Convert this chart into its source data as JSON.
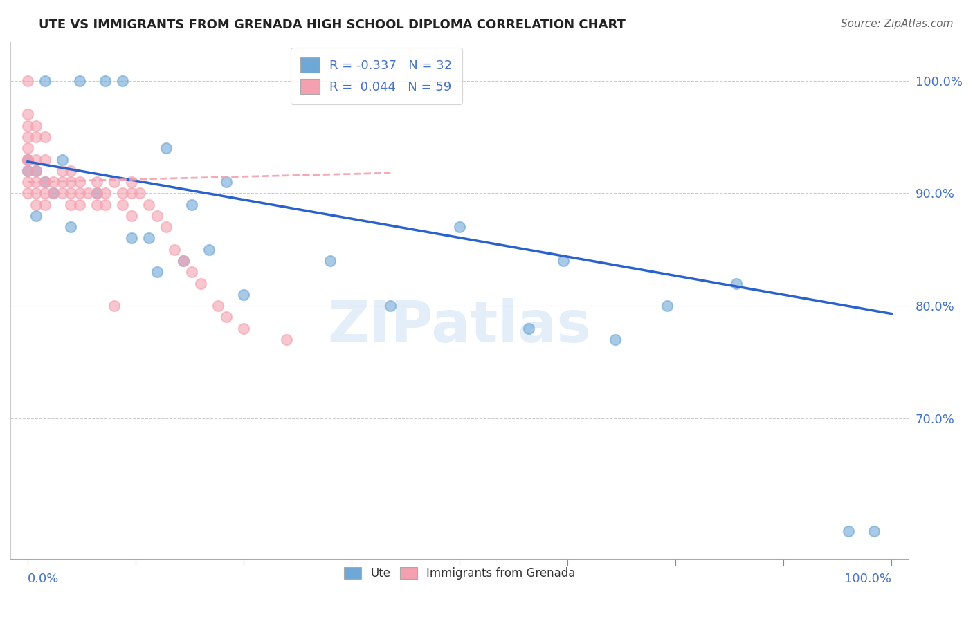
{
  "title": "UTE VS IMMIGRANTS FROM GRENADA HIGH SCHOOL DIPLOMA CORRELATION CHART",
  "source": "Source: ZipAtlas.com",
  "ylabel": "High School Diploma",
  "watermark": "ZIPatlas",
  "legend_blue_r": "-0.337",
  "legend_blue_n": "32",
  "legend_pink_r": "0.044",
  "legend_pink_n": "59",
  "blue_color": "#6fa8d6",
  "pink_color": "#f4a0b0",
  "blue_line_color": "#2962cc",
  "blue_scatter_x": [
    0.02,
    0.06,
    0.09,
    0.11,
    0.0,
    0.04,
    0.16,
    0.23,
    0.01,
    0.05,
    0.14,
    0.19,
    0.35,
    0.5,
    0.62,
    0.68,
    0.74,
    0.82,
    0.98,
    0.0,
    0.01,
    0.02,
    0.03,
    0.08,
    0.12,
    0.15,
    0.18,
    0.21,
    0.25,
    0.42,
    0.58,
    0.95
  ],
  "blue_scatter_y": [
    1.0,
    1.0,
    1.0,
    1.0,
    0.92,
    0.93,
    0.94,
    0.91,
    0.88,
    0.87,
    0.86,
    0.89,
    0.84,
    0.87,
    0.84,
    0.77,
    0.8,
    0.82,
    0.6,
    0.93,
    0.92,
    0.91,
    0.9,
    0.9,
    0.86,
    0.83,
    0.84,
    0.85,
    0.81,
    0.8,
    0.78,
    0.6
  ],
  "pink_scatter_x": [
    0.0,
    0.0,
    0.0,
    0.0,
    0.0,
    0.0,
    0.0,
    0.0,
    0.0,
    0.0,
    0.01,
    0.01,
    0.01,
    0.01,
    0.01,
    0.01,
    0.01,
    0.02,
    0.02,
    0.02,
    0.02,
    0.02,
    0.03,
    0.03,
    0.04,
    0.04,
    0.04,
    0.05,
    0.05,
    0.05,
    0.05,
    0.06,
    0.06,
    0.06,
    0.07,
    0.08,
    0.08,
    0.08,
    0.09,
    0.09,
    0.1,
    0.1,
    0.11,
    0.11,
    0.12,
    0.12,
    0.12,
    0.13,
    0.14,
    0.15,
    0.16,
    0.17,
    0.18,
    0.19,
    0.2,
    0.22,
    0.23,
    0.25,
    0.3
  ],
  "pink_scatter_y": [
    1.0,
    0.97,
    0.96,
    0.95,
    0.94,
    0.93,
    0.93,
    0.92,
    0.91,
    0.9,
    0.96,
    0.95,
    0.93,
    0.92,
    0.91,
    0.9,
    0.89,
    0.95,
    0.93,
    0.91,
    0.9,
    0.89,
    0.91,
    0.9,
    0.92,
    0.91,
    0.9,
    0.92,
    0.91,
    0.9,
    0.89,
    0.91,
    0.9,
    0.89,
    0.9,
    0.91,
    0.9,
    0.89,
    0.9,
    0.89,
    0.91,
    0.8,
    0.9,
    0.89,
    0.91,
    0.9,
    0.88,
    0.9,
    0.89,
    0.88,
    0.87,
    0.85,
    0.84,
    0.83,
    0.82,
    0.8,
    0.79,
    0.78,
    0.77
  ],
  "ylim_min": 0.575,
  "ylim_max": 1.035,
  "xlim_min": -0.02,
  "xlim_max": 1.02,
  "ytick_positions": [
    0.7,
    0.8,
    0.9,
    1.0
  ],
  "ytick_labels": [
    "70.0%",
    "80.0%",
    "90.0%",
    "100.0%"
  ],
  "blue_trendline_x": [
    0.0,
    1.0
  ],
  "blue_trendline_y": [
    0.928,
    0.793
  ],
  "pink_trendline_x": [
    0.0,
    0.42
  ],
  "pink_trendline_y": [
    0.91,
    0.918
  ]
}
